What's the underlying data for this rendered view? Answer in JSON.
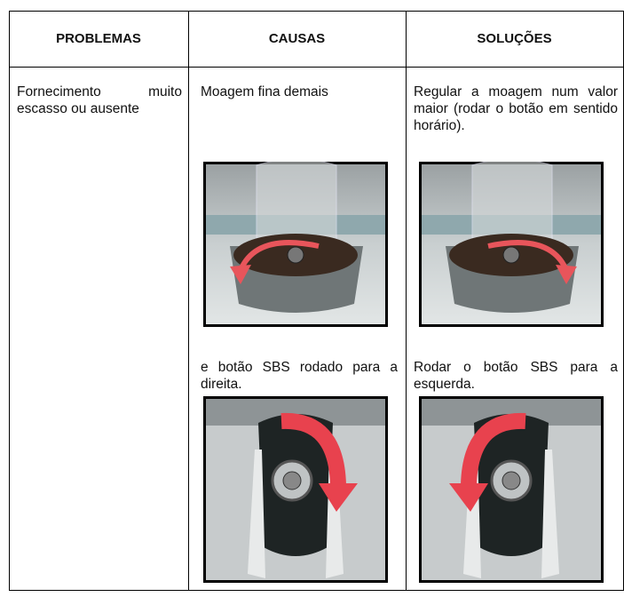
{
  "table": {
    "headers": [
      "PROBLEMAS",
      "CAUSAS",
      "SOLUÇÕES"
    ],
    "rows": [
      {
        "problem": "Fornecimento muito escasso ou ausente",
        "causes": [
          "Moagem fina demais",
          "e botão SBS rodado para a direita."
        ],
        "solutions": [
          "Regular a moagem num valor maior (rodar o botão em sentido horário).",
          "Rodar o botão SBS para a esquerda."
        ]
      }
    ]
  }
}
